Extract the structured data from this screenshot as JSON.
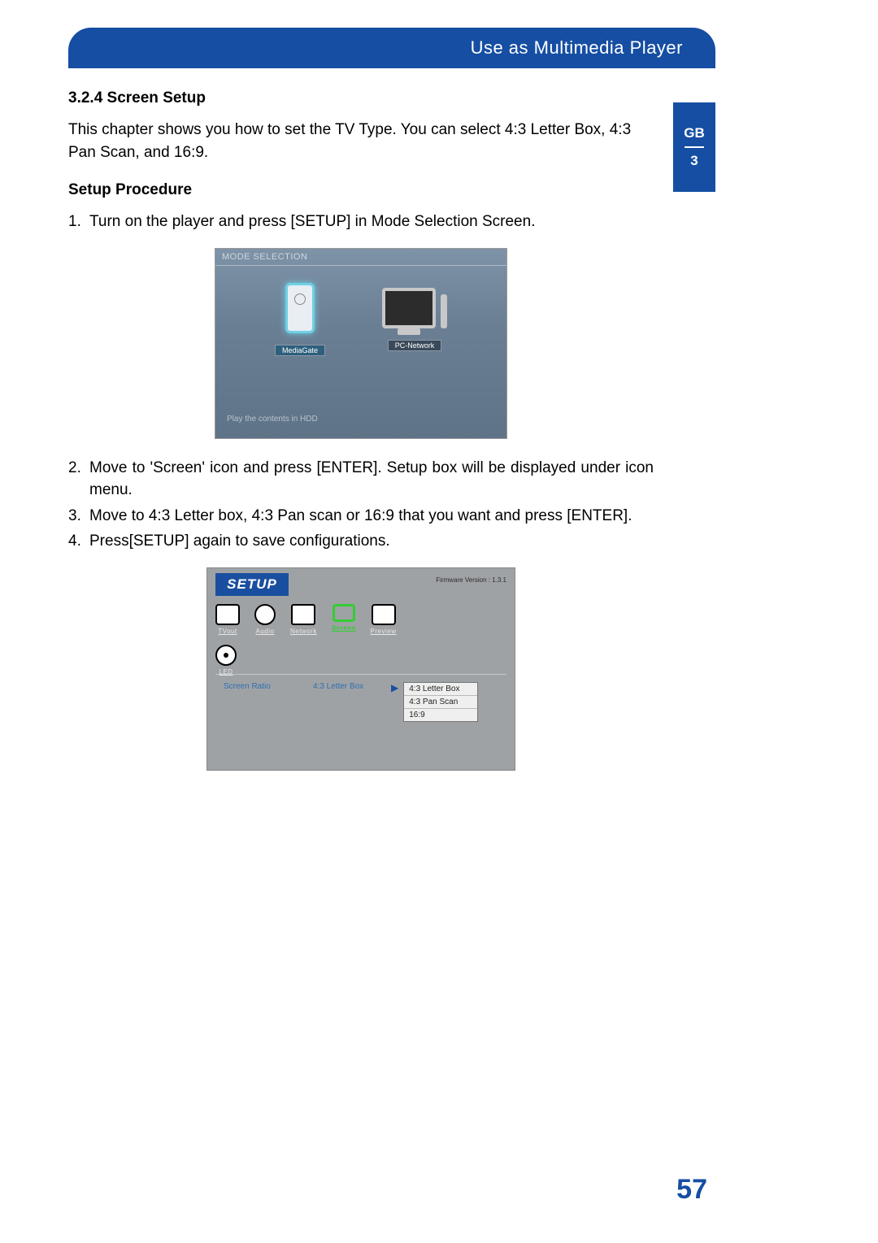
{
  "header": {
    "title": "Use as Multimedia Player"
  },
  "sidetab": {
    "lang": "GB",
    "chapter": "3"
  },
  "section": {
    "number_title": "3.2.4 Screen Setup",
    "intro": "This chapter shows you how to set the TV Type. You can select 4:3 Letter Box, 4:3 Pan Scan, and 16:9.",
    "procedure_heading": "Setup Procedure",
    "steps": [
      "Turn on the player and press [SETUP] in Mode Selection Screen.",
      "Move to 'Screen' icon and press [ENTER]. Setup box will be displayed under icon menu.",
      "Move to 4:3 Letter box, 4:3 Pan scan or 16:9 that you want and press [ENTER].",
      "Press[SETUP] again to save  configurations."
    ]
  },
  "mode_selection": {
    "title": "MODE SELECTION",
    "items": [
      {
        "label": "MediaGate",
        "selected": true
      },
      {
        "label": "PC-Network",
        "selected": false
      }
    ],
    "footer": "Play the contents in HDD"
  },
  "setup_screen": {
    "title": "SETUP",
    "firmware": "Firmware Version : 1.3.1",
    "tabs_row1": [
      {
        "label": "TVout"
      },
      {
        "label": "Audio"
      },
      {
        "label": "Network"
      },
      {
        "label": "Screen",
        "selected": true
      },
      {
        "label": "Preview"
      }
    ],
    "tabs_row2": [
      {
        "label": "LED"
      }
    ],
    "setting_label": "Screen Ratio",
    "setting_value": "4:3 Letter Box",
    "options": [
      "4:3 Letter Box",
      "4:3 Pan Scan",
      "16:9"
    ]
  },
  "page_number": "57",
  "colors": {
    "brand_blue": "#154ea3",
    "link_blue": "#2e6fb0",
    "green": "#32cd32",
    "ms_bg_top": "#7e93a8",
    "setup_bg": "#9fa2a5"
  }
}
